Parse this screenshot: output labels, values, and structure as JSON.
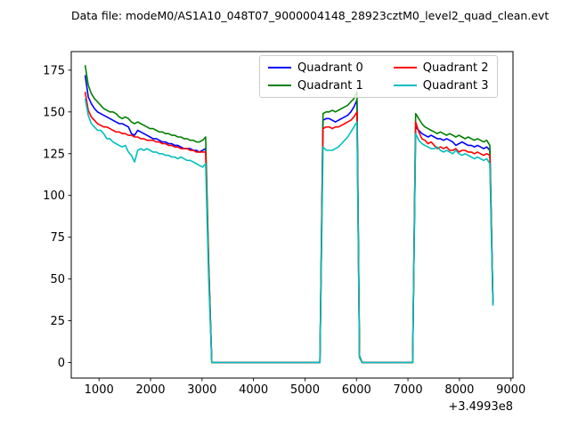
{
  "title": "Data file: modeM0/AS1A10_048T07_9000004148_28923cztM0_level2_quad_clean.evt",
  "chart_data": {
    "type": "line",
    "title": "Data file: modeM0/AS1A10_048T07_9000004148_28923cztM0_level2_quad_clean.evt",
    "xlabel": "",
    "ylabel": "",
    "x_offset_label": "+3.4993e8",
    "xlim": [
      460,
      9040
    ],
    "ylim": [
      -9.3,
      186.1
    ],
    "x_ticks": [
      1000,
      2000,
      3000,
      4000,
      5000,
      6000,
      7000,
      8000,
      9000
    ],
    "y_ticks": [
      0,
      25,
      50,
      75,
      100,
      125,
      150,
      175
    ],
    "grid": false,
    "legend": {
      "position": "upper center",
      "columns": 2,
      "display_order": [
        0,
        2,
        1,
        3
      ]
    },
    "x": [
      730,
      790,
      850,
      910,
      970,
      1030,
      1090,
      1150,
      1210,
      1270,
      1330,
      1390,
      1450,
      1510,
      1570,
      1630,
      1690,
      1750,
      1810,
      1870,
      1930,
      1990,
      2050,
      2110,
      2170,
      2230,
      2290,
      2350,
      2410,
      2470,
      2530,
      2590,
      2650,
      2710,
      2770,
      2830,
      2890,
      2950,
      3010,
      3070,
      3130,
      3190,
      5290,
      5350,
      5410,
      5470,
      5530,
      5590,
      5650,
      5710,
      5770,
      5830,
      5890,
      5950,
      6010,
      6060,
      6110,
      7030,
      7090,
      7150,
      7210,
      7270,
      7330,
      7390,
      7450,
      7510,
      7570,
      7630,
      7690,
      7750,
      7810,
      7870,
      7930,
      7990,
      8050,
      8110,
      8170,
      8230,
      8290,
      8350,
      8410,
      8470,
      8530,
      8590,
      8650
    ],
    "series": [
      {
        "name": "Quadrant 0",
        "color": "#0000ff",
        "values": [
          172,
          159,
          155,
          152,
          150,
          149,
          148,
          147,
          146,
          145,
          144,
          143,
          143,
          142,
          141,
          137,
          136,
          139,
          138,
          137,
          136,
          135,
          134,
          134,
          133,
          132,
          132,
          131,
          131,
          130,
          130,
          129,
          128,
          128,
          128,
          127,
          127,
          126,
          127,
          128,
          58,
          0,
          0,
          145,
          146,
          146,
          145,
          144,
          145,
          146,
          147,
          148,
          150,
          153,
          157,
          3,
          0,
          0,
          0,
          141,
          139,
          137,
          136,
          135,
          136,
          135,
          134,
          134,
          133,
          134,
          133,
          132,
          130,
          131,
          132,
          131,
          130,
          130,
          129,
          130,
          129,
          128,
          129,
          127,
          36
        ]
      },
      {
        "name": "Quadrant 1",
        "color": "#008000",
        "values": [
          178,
          166,
          161,
          158,
          156,
          154,
          152,
          151,
          150,
          150,
          149,
          147,
          146,
          147,
          146,
          144,
          143,
          144,
          143,
          142,
          141,
          140,
          140,
          139,
          138,
          138,
          137,
          137,
          136,
          136,
          135,
          135,
          134,
          134,
          133,
          133,
          132,
          132,
          133,
          135,
          60,
          0,
          0,
          149,
          150,
          150,
          151,
          150,
          151,
          152,
          153,
          154,
          156,
          158,
          162,
          4,
          0,
          0,
          0,
          149,
          146,
          143,
          141,
          140,
          139,
          138,
          137,
          138,
          137,
          136,
          137,
          136,
          135,
          136,
          135,
          134,
          135,
          134,
          133,
          134,
          133,
          132,
          133,
          130,
          36
        ]
      },
      {
        "name": "Quadrant 2",
        "color": "#ff0000",
        "values": [
          162,
          151,
          147,
          145,
          143,
          142,
          141,
          141,
          140,
          139,
          138,
          138,
          137,
          137,
          136,
          136,
          135,
          135,
          134,
          134,
          133,
          133,
          133,
          132,
          132,
          131,
          131,
          130,
          130,
          129,
          129,
          128,
          128,
          128,
          127,
          127,
          126,
          126,
          126,
          126,
          55,
          0,
          0,
          140,
          141,
          141,
          140,
          141,
          141,
          142,
          143,
          144,
          145,
          147,
          150,
          3,
          0,
          0,
          0,
          144,
          138,
          134,
          133,
          131,
          132,
          130,
          128,
          129,
          128,
          129,
          127,
          127,
          128,
          126,
          127,
          127,
          126,
          126,
          125,
          126,
          125,
          124,
          125,
          124,
          35
        ]
      },
      {
        "name": "Quadrant 3",
        "color": "#00bfbf",
        "values": [
          158,
          148,
          143,
          141,
          139,
          139,
          137,
          134,
          134,
          132,
          131,
          130,
          129,
          130,
          126,
          124,
          120,
          127,
          128,
          127,
          128,
          127,
          126,
          126,
          125,
          125,
          124,
          124,
          123,
          123,
          122,
          123,
          122,
          121,
          121,
          120,
          119,
          118,
          117,
          119,
          50,
          0,
          0,
          129,
          127,
          127,
          127,
          128,
          129,
          131,
          133,
          135,
          138,
          141,
          144,
          3,
          0,
          0,
          0,
          137,
          133,
          131,
          130,
          129,
          128,
          128,
          129,
          127,
          126,
          127,
          126,
          125,
          127,
          125,
          124,
          125,
          124,
          123,
          122,
          123,
          122,
          121,
          122,
          119,
          34
        ]
      }
    ],
    "colors": {
      "background": "#ffffff",
      "spine": "#000000",
      "text": "#000000"
    }
  }
}
